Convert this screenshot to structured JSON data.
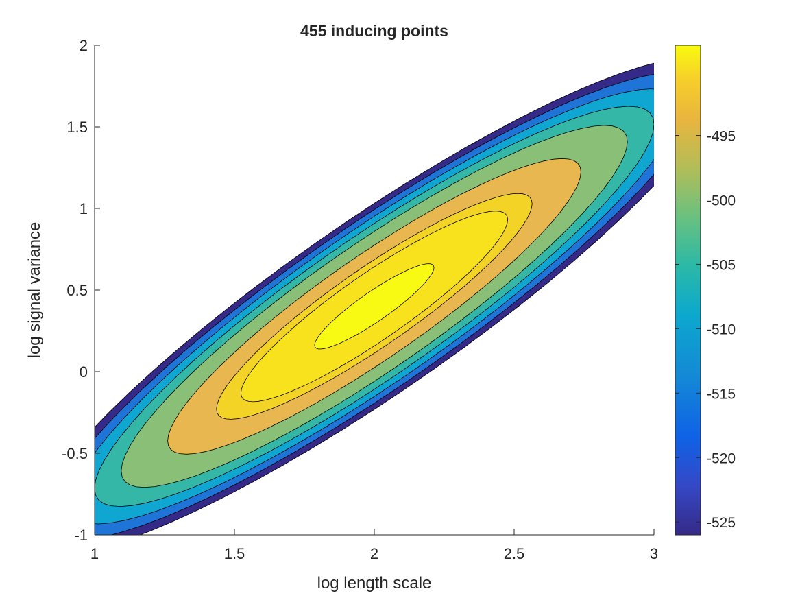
{
  "chart_data": {
    "type": "contourf",
    "title": "455 inducing points",
    "xlabel": "log length scale",
    "ylabel": "log signal variance",
    "xlim": [
      1,
      3
    ],
    "ylim": [
      -1,
      2
    ],
    "x_ticks": [
      1,
      1.5,
      2,
      2.5,
      3
    ],
    "x_tick_labels": [
      "1",
      "1.5",
      "2",
      "2.5",
      "3"
    ],
    "y_ticks": [
      -1,
      -0.5,
      0,
      0.5,
      1,
      1.5,
      2
    ],
    "y_tick_labels": [
      "-1",
      "-0.5",
      "0",
      "0.5",
      "1",
      "1.5",
      "2"
    ],
    "grid": false,
    "colormap": "parula",
    "colorbar": {
      "location": "right",
      "clim": [
        -526,
        -488
      ],
      "ticks": [
        -525,
        -520,
        -515,
        -510,
        -505,
        -500,
        -495
      ],
      "tick_labels": [
        "-525",
        "-520",
        "-515",
        "-510",
        "-505",
        "-500",
        "-495"
      ]
    },
    "peak": {
      "x": 2.0,
      "y": 0.4
    },
    "contour_levels": [
      {
        "value": -525,
        "color": "#352a87"
      },
      {
        "value": -521,
        "color": "#1f74d8"
      },
      {
        "value": -517,
        "color": "#10a6d2"
      },
      {
        "value": -513,
        "color": "#34b7a6"
      },
      {
        "value": -509,
        "color": "#89bf76"
      },
      {
        "value": -503,
        "color": "#e8b74f"
      },
      {
        "value": -498,
        "color": "#f4d327"
      },
      {
        "value": -496,
        "color": "#f8e21e"
      },
      {
        "value": -492,
        "color": "#f9fa14"
      }
    ]
  }
}
